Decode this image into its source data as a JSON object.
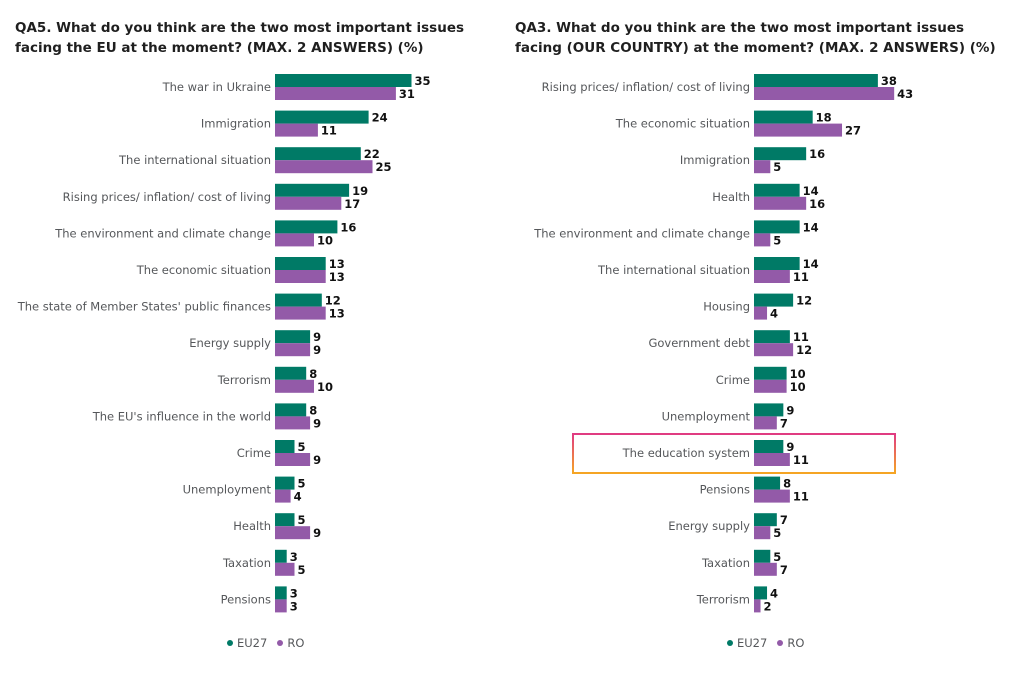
{
  "chart_data": [
    {
      "type": "bar",
      "title": "QA5. What do you think are the two most important issues facing the EU at the moment? (MAX. 2 ANSWERS) (%)",
      "categories": [
        "The war in Ukraine",
        "Immigration",
        "The international situation",
        "Rising prices/ inflation/ cost of living",
        "The environment and climate change",
        "The economic situation",
        "The state of Member States' public finances",
        "Energy supply",
        "Terrorism",
        "The EU's influence in the world",
        "Crime",
        "Unemployment",
        "Health",
        "Taxation",
        "Pensions"
      ],
      "series": [
        {
          "name": "EU27",
          "color": "#007a66",
          "values": [
            35,
            24,
            22,
            19,
            16,
            13,
            12,
            9,
            8,
            8,
            5,
            5,
            5,
            3,
            3
          ]
        },
        {
          "name": "RO",
          "color": "#935aa8",
          "values": [
            31,
            11,
            25,
            17,
            10,
            13,
            13,
            9,
            10,
            9,
            9,
            4,
            9,
            5,
            3
          ]
        }
      ],
      "orientation": "horizontal",
      "legend": "bottom"
    },
    {
      "type": "bar",
      "title": "QA3. What do you think are the two most important issues facing (OUR COUNTRY) at the moment? (MAX. 2 ANSWERS) (%)",
      "categories": [
        "Rising prices/ inflation/ cost of living",
        "The economic situation",
        "Immigration",
        "Health",
        "The environment and climate change",
        "The international situation",
        "Housing",
        "Government debt",
        "Crime",
        "Unemployment",
        "The education system",
        "Pensions",
        "Energy supply",
        "Taxation",
        "Terrorism"
      ],
      "series": [
        {
          "name": "EU27",
          "color": "#007a66",
          "values": [
            38,
            18,
            16,
            14,
            14,
            14,
            12,
            11,
            10,
            9,
            9,
            8,
            7,
            5,
            4
          ]
        },
        {
          "name": "RO",
          "color": "#935aa8",
          "values": [
            43,
            27,
            5,
            16,
            5,
            11,
            4,
            12,
            10,
            7,
            11,
            11,
            5,
            7,
            2
          ]
        }
      ],
      "orientation": "horizontal",
      "legend": "bottom",
      "highlighted_category": "The education system"
    }
  ]
}
